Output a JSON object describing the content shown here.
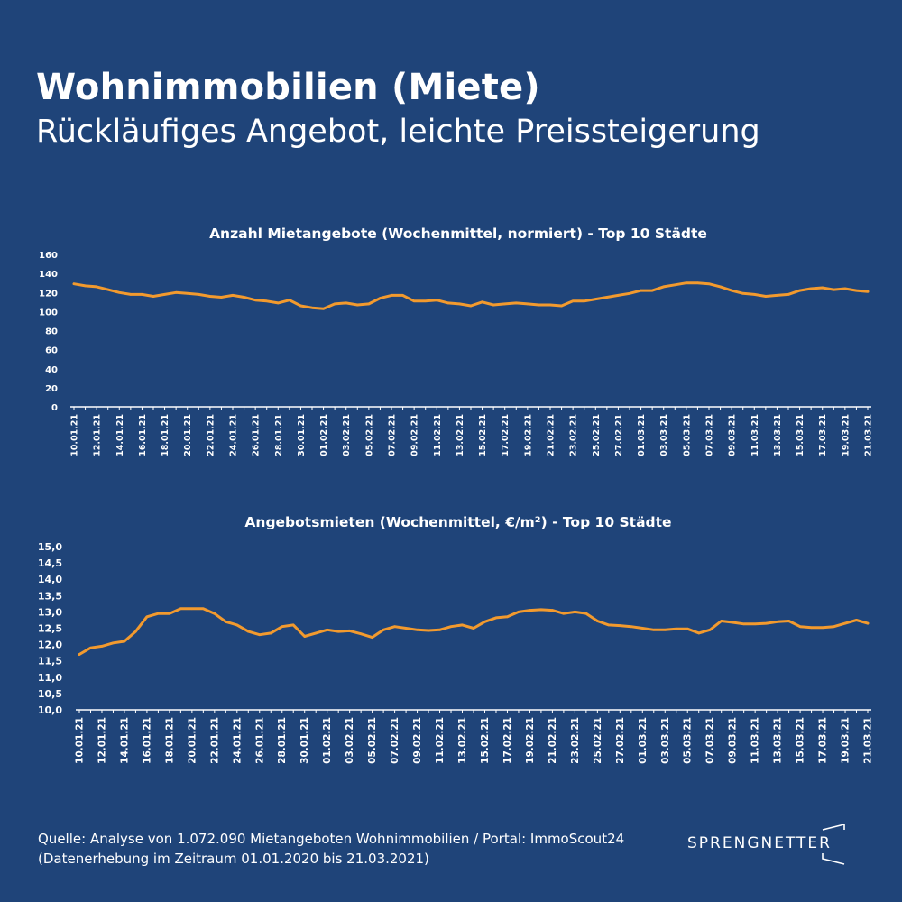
{
  "header": {
    "title": "Wohnimmobilien (Miete)",
    "subtitle": "Rückläufiges Angebot, leichte Preissteigerung"
  },
  "footer": {
    "source_line1": "Quelle: Analyse von 1.072.090 Mietangeboten Wohnimmobilien / Portal: ImmoScout24",
    "source_line2": "(Datenerhebung im Zeitraum 01.01.2020 bis  21.03.2021)",
    "logo_text": "SPRENGNETTER"
  },
  "colors": {
    "background": "#1f4479",
    "line": "#f29a2e",
    "axis": "#ffffff",
    "text": "#ffffff"
  },
  "chart_data": [
    {
      "type": "line",
      "title": "Anzahl Mietangebote (Wochenmittel, normiert) - Top 10 Städte",
      "xlabel": "",
      "ylabel": "",
      "ylim": [
        0,
        160
      ],
      "yticks": [
        "0",
        "20",
        "40",
        "60",
        "80",
        "100",
        "120",
        "140",
        "160"
      ],
      "grid": false,
      "x": [
        "10.01.21",
        "11.01.21",
        "12.01.21",
        "13.01.21",
        "14.01.21",
        "15.01.21",
        "16.01.21",
        "17.01.21",
        "18.01.21",
        "19.01.21",
        "20.01.21",
        "21.01.21",
        "22.01.21",
        "23.01.21",
        "24.01.21",
        "25.01.21",
        "26.01.21",
        "27.01.21",
        "28.01.21",
        "29.01.21",
        "30.01.21",
        "31.01.21",
        "01.02.21",
        "02.02.21",
        "03.02.21",
        "04.02.21",
        "05.02.21",
        "06.02.21",
        "07.02.21",
        "08.02.21",
        "09.02.21",
        "10.02.21",
        "11.02.21",
        "12.02.21",
        "13.02.21",
        "14.02.21",
        "15.02.21",
        "16.02.21",
        "17.02.21",
        "18.02.21",
        "19.02.21",
        "20.02.21",
        "21.02.21",
        "22.02.21",
        "23.02.21",
        "24.02.21",
        "25.02.21",
        "26.02.21",
        "27.02.21",
        "28.02.21",
        "01.03.21",
        "02.03.21",
        "03.03.21",
        "04.03.21",
        "05.03.21",
        "06.03.21",
        "07.03.21",
        "08.03.21",
        "09.03.21",
        "10.03.21",
        "11.03.21",
        "12.03.21",
        "13.03.21",
        "14.03.21",
        "15.03.21",
        "16.03.21",
        "17.03.21",
        "18.03.21",
        "19.03.21",
        "20.03.21",
        "21.03.21"
      ],
      "x_tick_labels": [
        "10.01.21",
        "12.01.21",
        "14.01.21",
        "16.01.21",
        "18.01.21",
        "20.01.21",
        "22.01.21",
        "24.01.21",
        "26.01.21",
        "28.01.21",
        "30.01.21",
        "01.02.21",
        "03.02.21",
        "05.02.21",
        "07.02.21",
        "09.02.21",
        "11.02.21",
        "13.02.21",
        "15.02.21",
        "17.02.21",
        "19.02.21",
        "21.02.21",
        "23.02.21",
        "25.02.21",
        "27.02.21",
        "01.03.21",
        "03.03.21",
        "05.03.21",
        "07.03.21",
        "09.03.21",
        "11.03.21",
        "13.03.21",
        "15.03.21",
        "17.03.21",
        "19.03.21",
        "21.03.21"
      ],
      "series": [
        {
          "name": "",
          "values": [
            129,
            127,
            126,
            123,
            120,
            118,
            118,
            116,
            118,
            120,
            119,
            118,
            116,
            115,
            117,
            115,
            112,
            111,
            109,
            112,
            106,
            104,
            103,
            108,
            109,
            107,
            108,
            114,
            117,
            117,
            111,
            111,
            112,
            109,
            108,
            106,
            110,
            107,
            108,
            109,
            108,
            107,
            107,
            106,
            111,
            111,
            113,
            115,
            117,
            119,
            122,
            122,
            126,
            128,
            130,
            130,
            129,
            126,
            122,
            119,
            118,
            116,
            117,
            118,
            122,
            124,
            125,
            123,
            124,
            122,
            121
          ]
        }
      ]
    },
    {
      "type": "line",
      "title": "Angebotsmieten (Wochenmittel, €/m²) - Top 10 Städte",
      "xlabel": "",
      "ylabel": "",
      "ylim": [
        10.0,
        15.0
      ],
      "yticks": [
        "10,0",
        "10,5",
        "11,0",
        "11,5",
        "12,0",
        "12,5",
        "13,0",
        "13,5",
        "14,0",
        "14,5",
        "15,0"
      ],
      "grid": false,
      "x": [
        "10.01.21",
        "11.01.21",
        "12.01.21",
        "13.01.21",
        "14.01.21",
        "15.01.21",
        "16.01.21",
        "17.01.21",
        "18.01.21",
        "19.01.21",
        "20.01.21",
        "21.01.21",
        "22.01.21",
        "23.01.21",
        "24.01.21",
        "25.01.21",
        "26.01.21",
        "27.01.21",
        "28.01.21",
        "29.01.21",
        "30.01.21",
        "31.01.21",
        "01.02.21",
        "02.02.21",
        "03.02.21",
        "04.02.21",
        "05.02.21",
        "06.02.21",
        "07.02.21",
        "08.02.21",
        "09.02.21",
        "10.02.21",
        "11.02.21",
        "12.02.21",
        "13.02.21",
        "14.02.21",
        "15.02.21",
        "16.02.21",
        "17.02.21",
        "18.02.21",
        "19.02.21",
        "20.02.21",
        "21.02.21",
        "22.02.21",
        "23.02.21",
        "24.02.21",
        "25.02.21",
        "26.02.21",
        "27.02.21",
        "28.02.21",
        "01.03.21",
        "02.03.21",
        "03.03.21",
        "04.03.21",
        "05.03.21",
        "06.03.21",
        "07.03.21",
        "08.03.21",
        "09.03.21",
        "10.03.21",
        "11.03.21",
        "12.03.21",
        "13.03.21",
        "14.03.21",
        "15.03.21",
        "16.03.21",
        "17.03.21",
        "18.03.21",
        "19.03.21",
        "20.03.21",
        "21.03.21"
      ],
      "x_tick_labels": [
        "10.01.21",
        "12.01.21",
        "14.01.21",
        "16.01.21",
        "18.01.21",
        "20.01.21",
        "22.01.21",
        "24.01.21",
        "26.01.21",
        "28.01.21",
        "30.01.21",
        "01.02.21",
        "03.02.21",
        "05.02.21",
        "07.02.21",
        "09.02.21",
        "11.02.21",
        "13.02.21",
        "15.02.21",
        "17.02.21",
        "19.02.21",
        "21.02.21",
        "23.02.21",
        "25.02.21",
        "27.02.21",
        "01.03.21",
        "03.03.21",
        "05.03.21",
        "07.03.21",
        "09.03.21",
        "11.03.21",
        "13.03.21",
        "15.03.21",
        "17.03.21",
        "19.03.21",
        "21.03.21"
      ],
      "series": [
        {
          "name": "",
          "values": [
            11.7,
            11.9,
            11.95,
            12.05,
            12.1,
            12.4,
            12.85,
            12.95,
            12.95,
            13.1,
            13.1,
            13.1,
            12.95,
            12.7,
            12.6,
            12.4,
            12.3,
            12.35,
            12.55,
            12.6,
            12.25,
            12.35,
            12.45,
            12.4,
            12.42,
            12.33,
            12.22,
            12.45,
            12.55,
            12.5,
            12.45,
            12.43,
            12.45,
            12.55,
            12.6,
            12.5,
            12.7,
            12.82,
            12.85,
            13.0,
            13.05,
            13.07,
            13.05,
            12.95,
            13.0,
            12.95,
            12.72,
            12.6,
            12.58,
            12.55,
            12.5,
            12.45,
            12.45,
            12.48,
            12.48,
            12.35,
            12.45,
            12.72,
            12.68,
            12.63,
            12.63,
            12.65,
            12.7,
            12.72,
            12.55,
            12.52,
            12.52,
            12.55,
            12.65,
            12.75,
            12.65
          ]
        }
      ]
    }
  ]
}
